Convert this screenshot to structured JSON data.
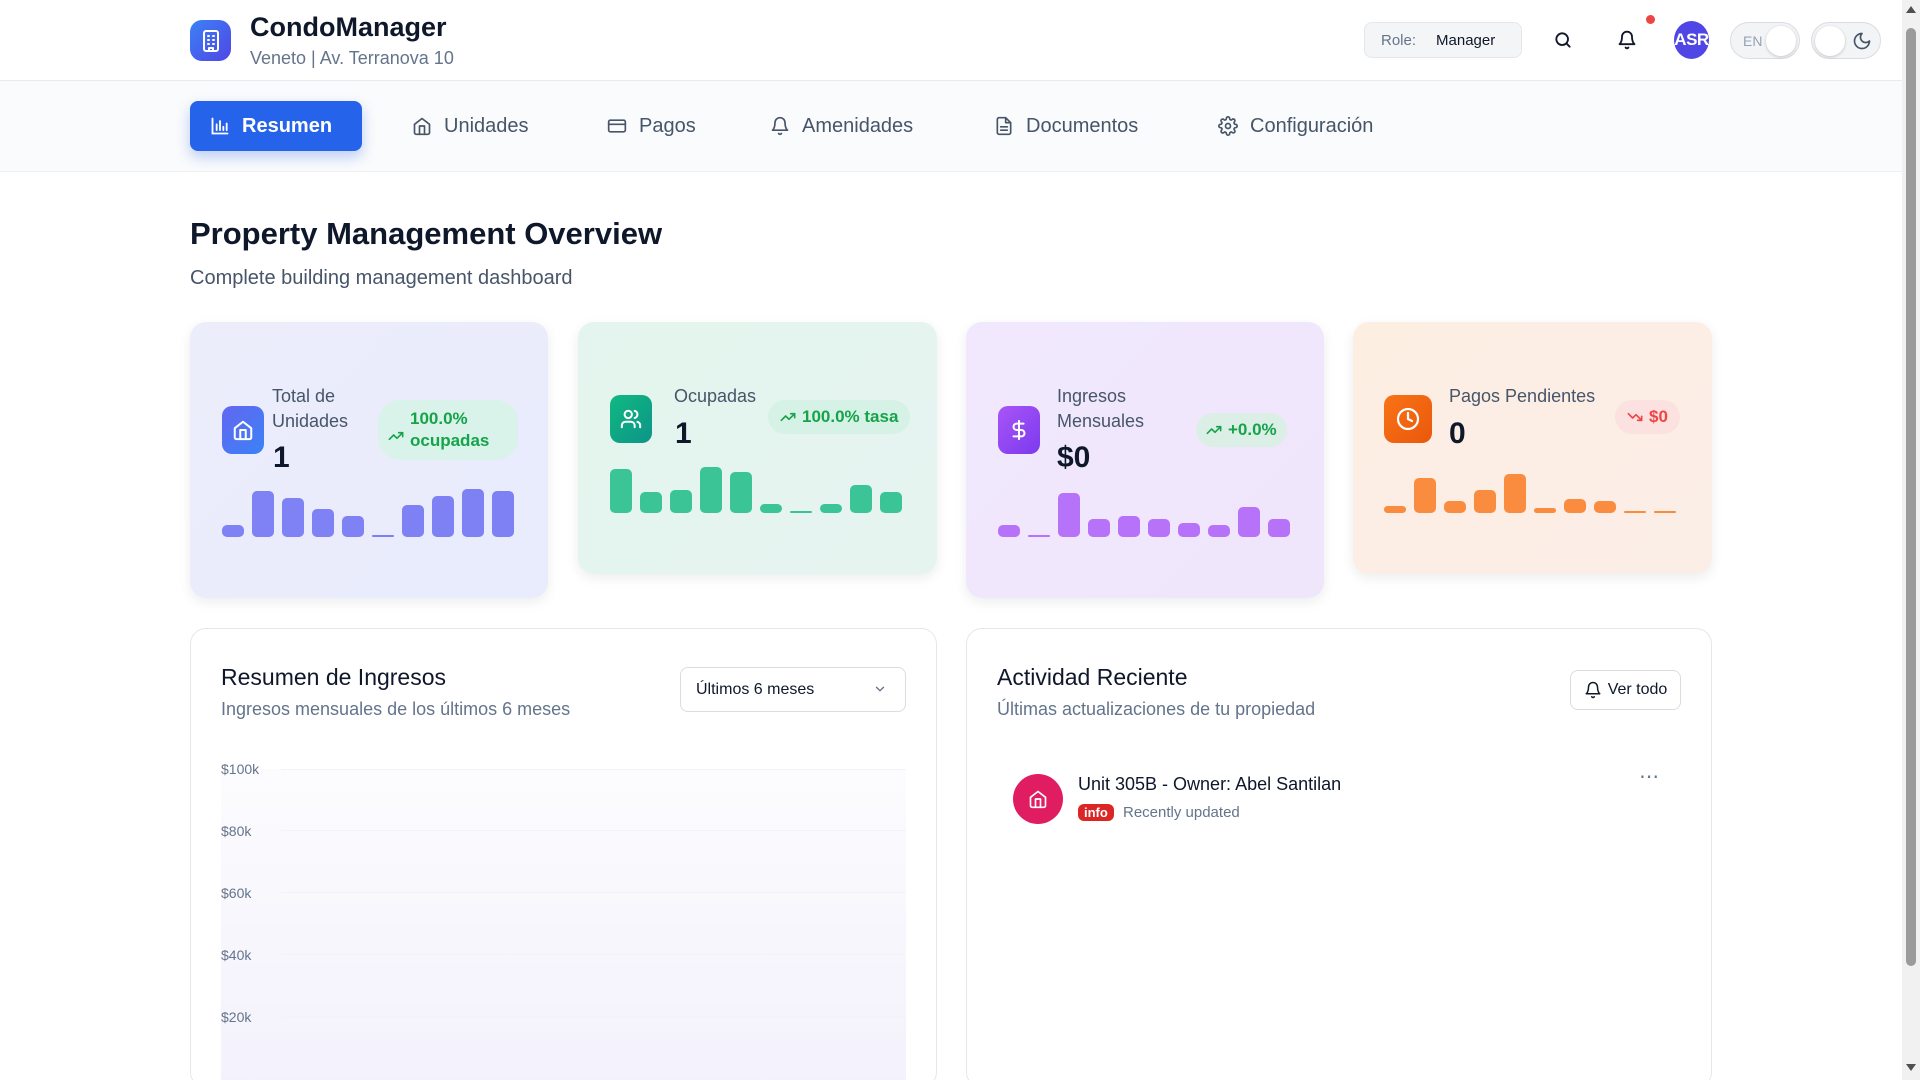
{
  "header": {
    "app_title": "CondoManager",
    "subtitle": "Veneto | Av. Terranova 10",
    "role_label": "Role:",
    "role_value": "Manager",
    "avatar_initials": "ASR",
    "language": "EN"
  },
  "nav": {
    "items": [
      {
        "label": "Resumen",
        "icon": "chart-icon",
        "active": true
      },
      {
        "label": "Unidades",
        "icon": "home-icon"
      },
      {
        "label": "Pagos",
        "icon": "credit-card-icon"
      },
      {
        "label": "Amenidades",
        "icon": "bell-icon"
      },
      {
        "label": "Documentos",
        "icon": "document-icon"
      },
      {
        "label": "Configuración",
        "icon": "gear-icon"
      }
    ]
  },
  "page": {
    "title": "Property Management Overview",
    "subtitle": "Complete building management dashboard"
  },
  "stats": [
    {
      "label_line1": "Total de",
      "label_line2": "Unidades",
      "value": "1",
      "badge_line1": "100.0%",
      "badge_line2": "ocupadas",
      "color": "#6366f1",
      "trend": "up",
      "sparkline": [
        0.25,
        1.0,
        0.85,
        0.6,
        0.45,
        0.0,
        0.7,
        0.9,
        1.05,
        1.0
      ]
    },
    {
      "label_line1": "Ocupadas",
      "value": "1",
      "badge": "100.0% tasa",
      "color": "#10b981",
      "trend": "up",
      "sparkline": [
        0.95,
        0.45,
        0.5,
        1.0,
        0.9,
        0.2,
        0.0,
        0.2,
        0.6,
        0.45
      ]
    },
    {
      "label_line1": "Ingresos",
      "label_line2": "Mensuales",
      "value": "$0",
      "badge": "+0.0%",
      "color": "#a855f7",
      "trend": "up",
      "sparkline": [
        0.25,
        0.0,
        0.95,
        0.4,
        0.45,
        0.4,
        0.3,
        0.25,
        0.65,
        0.4
      ]
    },
    {
      "label_line1": "Pagos Pendientes",
      "value": "0",
      "badge": "$0",
      "color": "#f97316",
      "trend": "down",
      "sparkline": [
        0.15,
        0.75,
        0.25,
        0.5,
        0.85,
        0.1,
        0.3,
        0.25,
        0.05,
        0.0
      ]
    }
  ],
  "revenue": {
    "title": "Resumen de Ingresos",
    "subtitle": "Ingresos mensuales de los últimos 6 meses",
    "period": "Últimos 6 meses",
    "y_ticks": [
      "$100k",
      "$80k",
      "$60k",
      "$40k",
      "$20k"
    ]
  },
  "activity": {
    "title": "Actividad Reciente",
    "subtitle": "Últimas actualizaciones de tu propiedad",
    "view_all": "Ver todo",
    "items": [
      {
        "title": "Unit 305B - Owner: Abel Santilan",
        "badge": "info",
        "meta": "Recently updated",
        "icon": "home-icon"
      }
    ]
  }
}
